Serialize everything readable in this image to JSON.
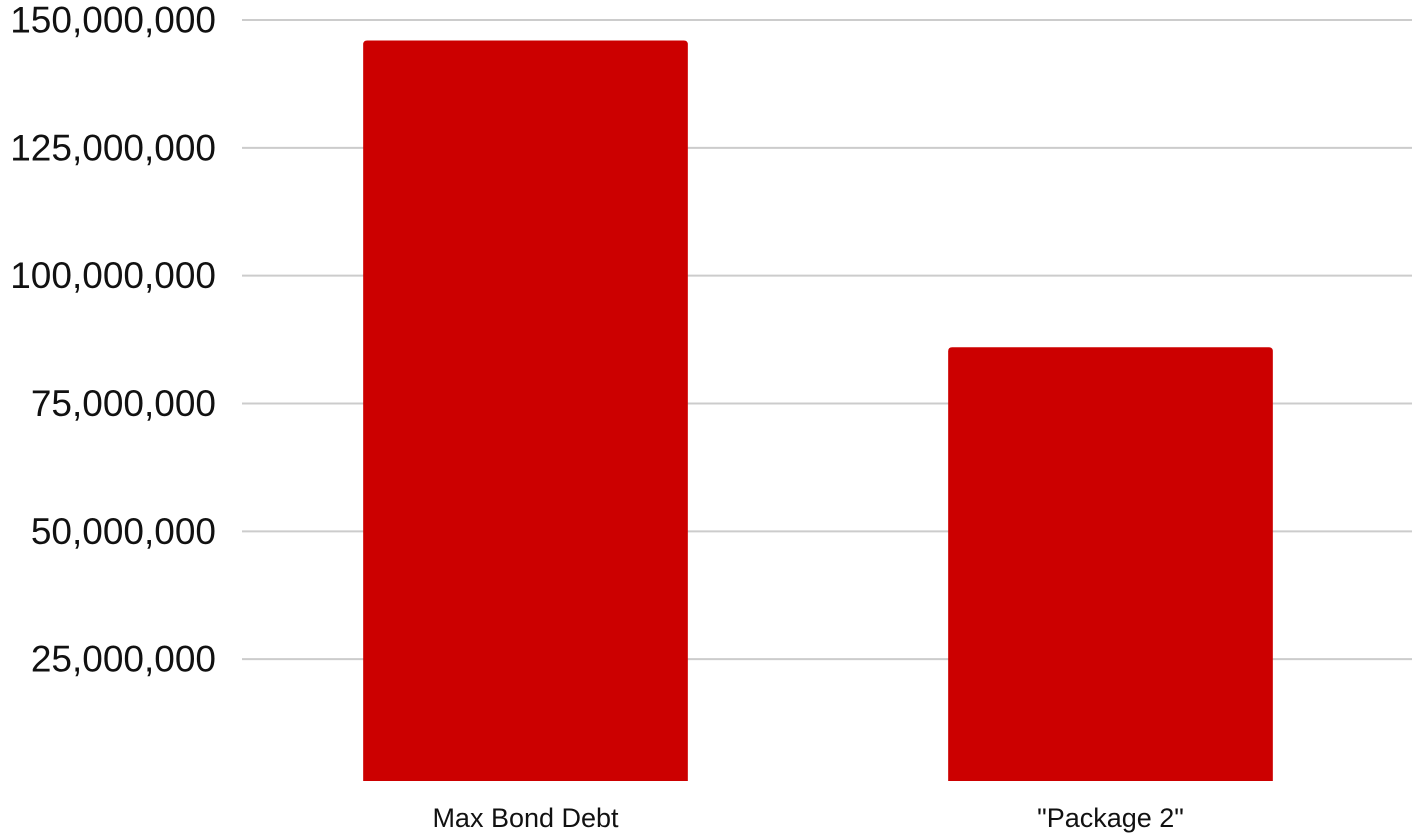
{
  "chart_data": {
    "type": "bar",
    "categories": [
      "Max Bond Debt",
      "\"Package 2\""
    ],
    "values": [
      146000000,
      86000000
    ],
    "yticks": [
      25000000,
      50000000,
      75000000,
      100000000,
      125000000,
      150000000
    ],
    "ytick_labels": [
      "25,000,000",
      "50,000,000",
      "75,000,000",
      "100,000,000",
      "125,000,000",
      "150,000,000"
    ],
    "ylim": [
      0,
      150000000
    ],
    "grid": true,
    "legend": "none",
    "bar_color": "#cc0000",
    "title": "",
    "xlabel": "",
    "ylabel": ""
  }
}
